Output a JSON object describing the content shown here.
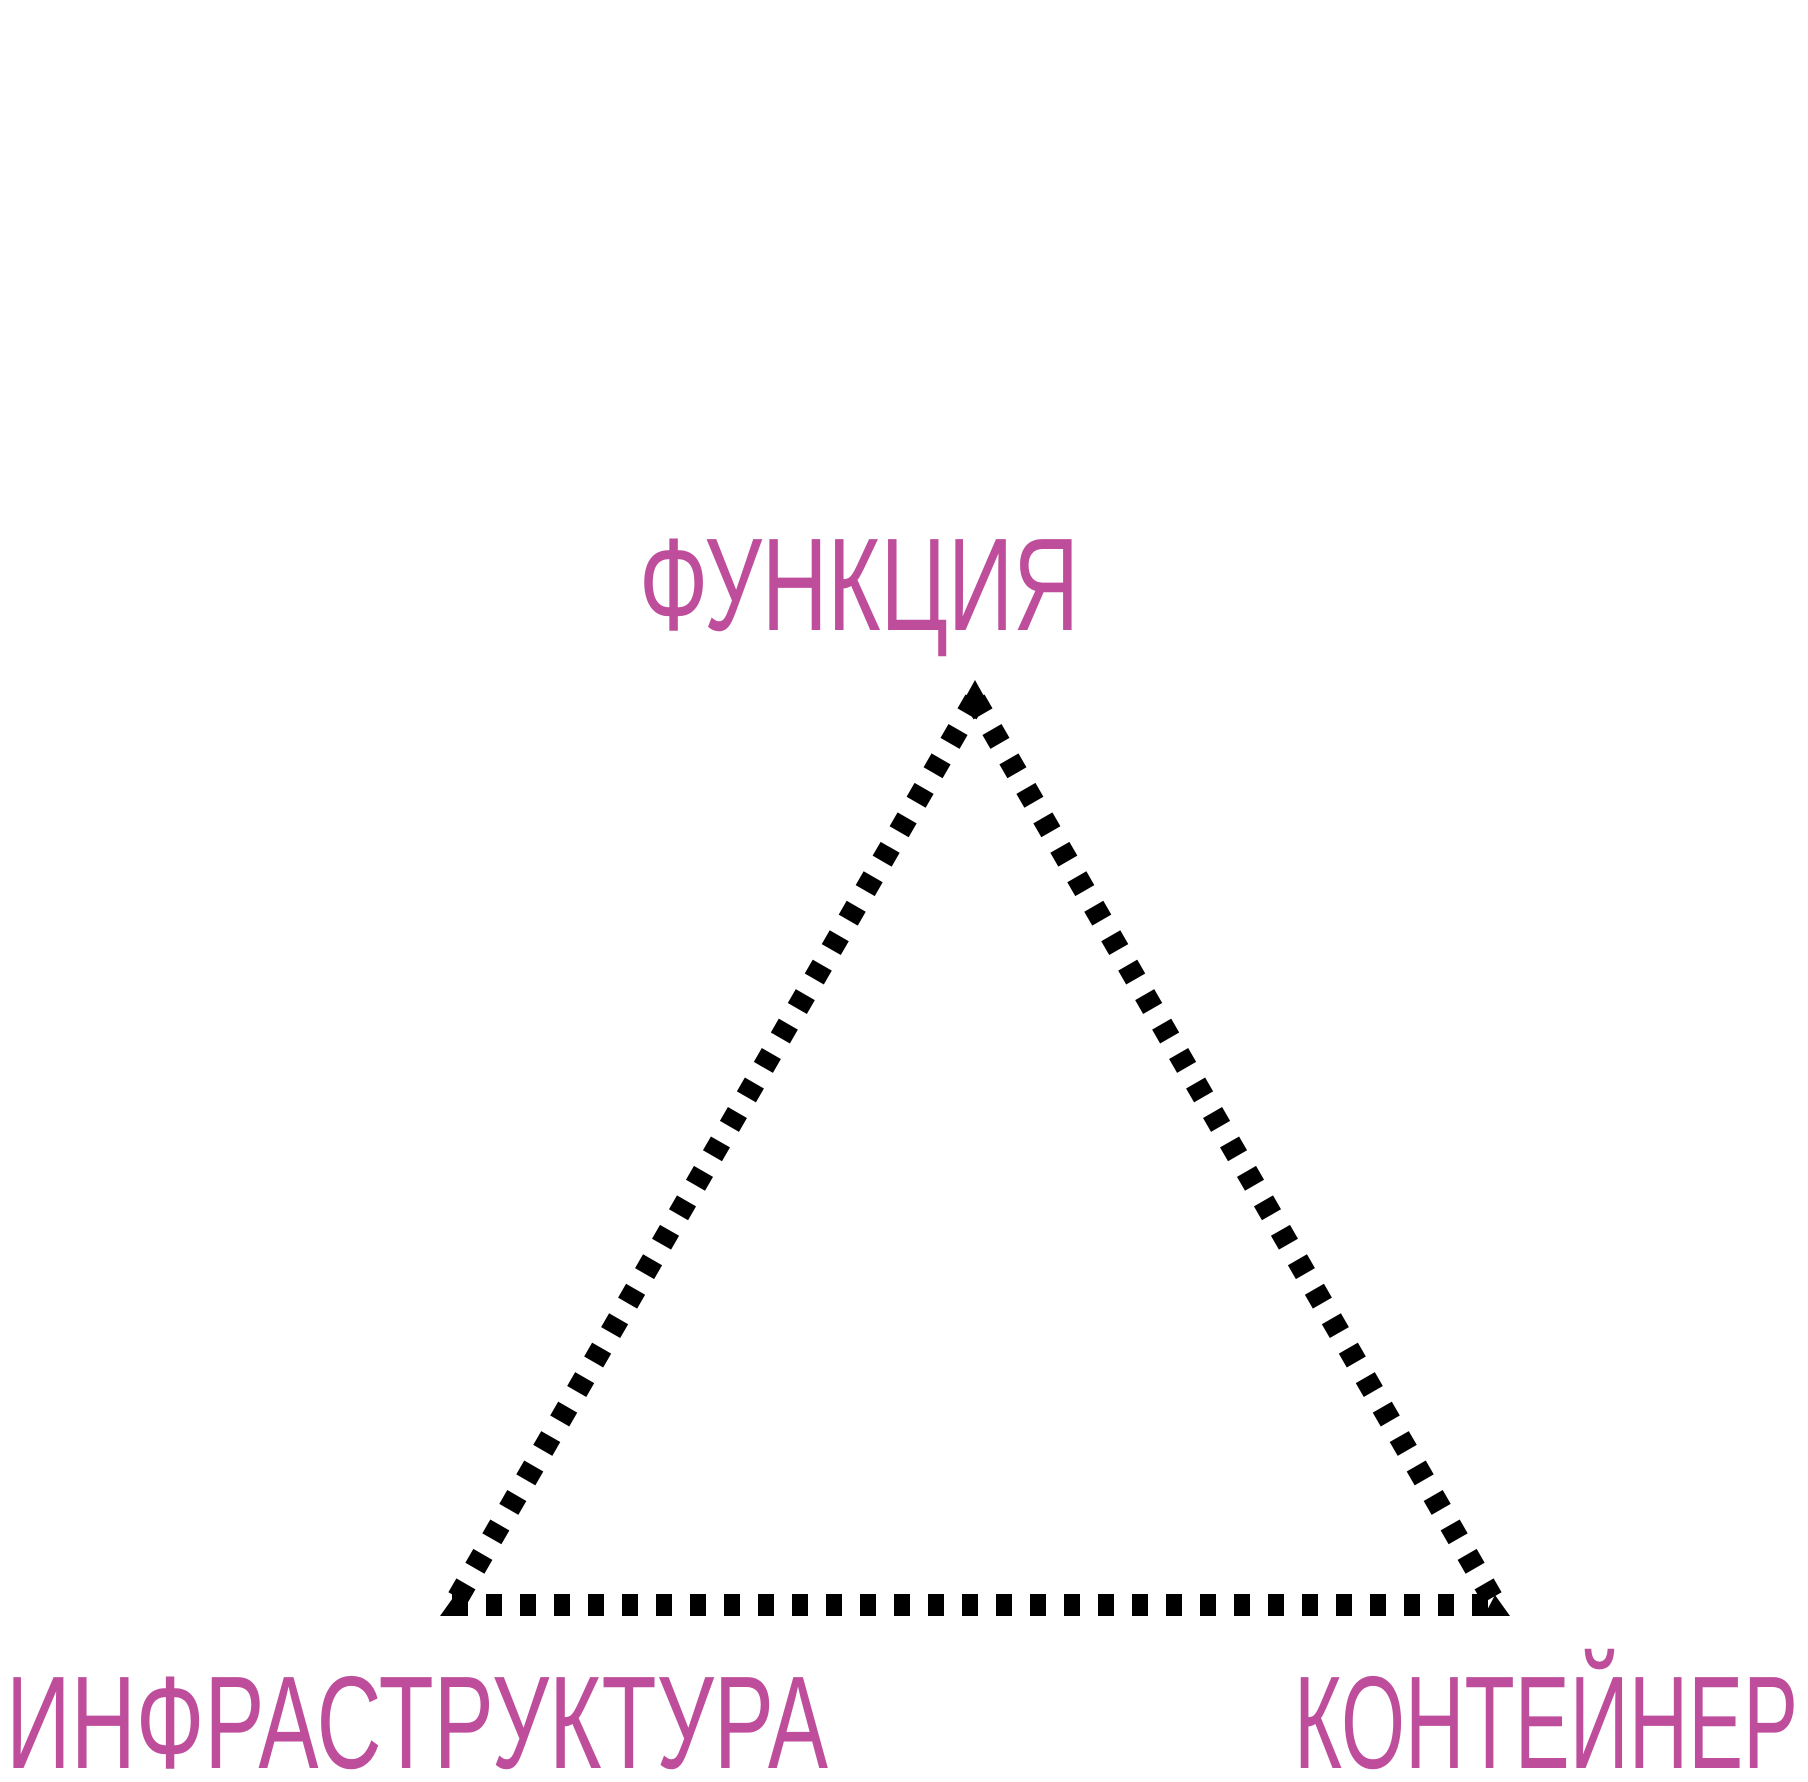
{
  "diagram": {
    "labels": {
      "top": "ФУНКЦИЯ",
      "bottom_left": "ИНФРАСТРУКТУРА",
      "bottom_right": "КОНТЕЙНЕР"
    },
    "colors": {
      "label": "#BE4E9C",
      "edge": "#000000",
      "background": "#FFFFFF"
    },
    "edge_style": "dotted"
  }
}
